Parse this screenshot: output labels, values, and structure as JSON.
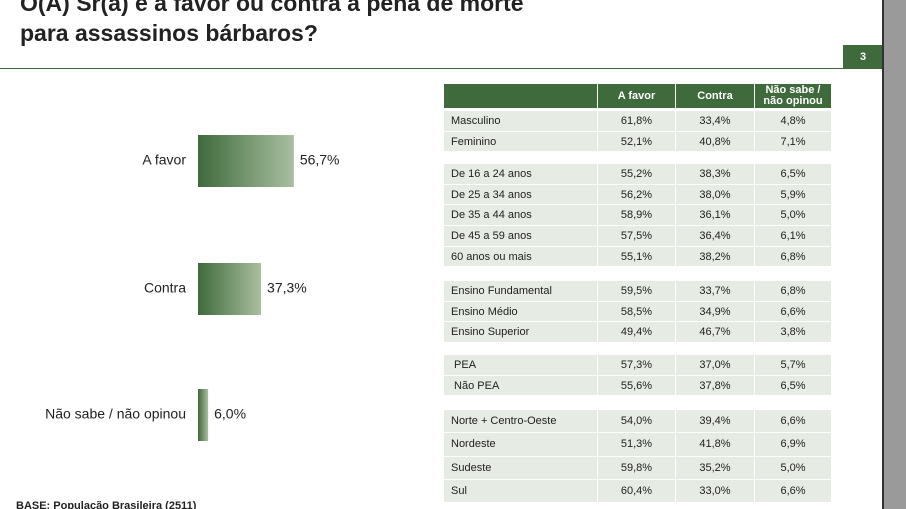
{
  "header": {
    "title_lines": [
      "O(A) Sr(a) é a favor ou contra a pena de morte",
      "para assassinos bárbaros?"
    ],
    "page_number": "3"
  },
  "chart_data": {
    "type": "hbar",
    "categories": [
      "A favor",
      "Contra",
      "Não sabe / não opinou"
    ],
    "values": [
      56.7,
      37.3,
      6.0
    ],
    "value_labels": [
      "56,7%",
      "37,3%",
      "6,0%"
    ],
    "color": "#3f6a3c"
  },
  "table": {
    "columns": [
      "A favor",
      "Contra",
      "Não sabe /\nnão opinou"
    ],
    "groups": [
      [
        [
          "Masculino",
          "61,8%",
          "33,4%",
          "4,8%"
        ],
        [
          "Feminino",
          "52,1%",
          "40,8%",
          "7,1%"
        ]
      ],
      [
        [
          "De 16 a 24 anos",
          "55,2%",
          "38,3%",
          "6,5%"
        ],
        [
          "De 25 a 34 anos",
          "56,2%",
          "38,0%",
          "5,9%"
        ],
        [
          "De 35 a 44 anos",
          "58,9%",
          "36,1%",
          "5,0%"
        ],
        [
          "De 45 a 59 anos",
          "57,5%",
          "36,4%",
          "6,1%"
        ],
        [
          "60 anos ou mais",
          "55,1%",
          "38,2%",
          "6,8%"
        ]
      ],
      [
        [
          "Ensino Fundamental",
          "59,5%",
          "33,7%",
          "6,8%"
        ],
        [
          "Ensino Médio",
          "58,5%",
          "34,9%",
          "6,6%"
        ],
        [
          "Ensino Superior",
          "49,4%",
          "46,7%",
          "3,8%"
        ]
      ],
      [
        [
          " PEA",
          "57,3%",
          "37,0%",
          "5,7%"
        ],
        [
          " Não PEA",
          "55,6%",
          "37,8%",
          "6,5%"
        ]
      ],
      [
        [
          "Norte + Centro-Oeste",
          "54,0%",
          "39,4%",
          "6,6%"
        ],
        [
          "Nordeste",
          "51,3%",
          "41,8%",
          "6,9%"
        ],
        [
          "Sudeste",
          "59,8%",
          "35,2%",
          "5,0%"
        ],
        [
          "Sul",
          "60,4%",
          "33,0%",
          "6,6%"
        ]
      ]
    ]
  },
  "footer": "BASE: População Brasileira (2511)"
}
